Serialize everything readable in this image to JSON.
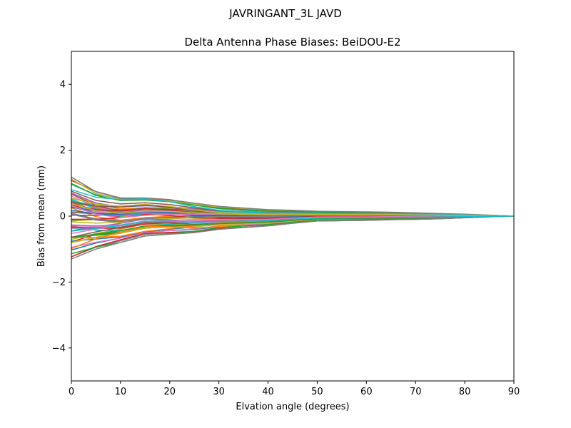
{
  "figure": {
    "suptitle": "JAVRINGANT_3L   JAVD"
  },
  "chart_data": {
    "type": "line",
    "title": "Delta Antenna Phase Biases: BeiDOU-E2",
    "xlabel": "Elvation angle (degrees)",
    "ylabel": "Bias from mean (mm)",
    "xlim": [
      0,
      90
    ],
    "ylim": [
      -5,
      5
    ],
    "xticks": [
      0,
      10,
      20,
      30,
      40,
      50,
      60,
      70,
      80,
      90
    ],
    "yticks": [
      -4,
      -2,
      0,
      2,
      4
    ],
    "xtick_labels": [
      "0",
      "10",
      "20",
      "30",
      "40",
      "50",
      "60",
      "70",
      "80",
      "90"
    ],
    "ytick_labels": [
      "−4",
      "−2",
      "0",
      "2",
      "4"
    ],
    "grid": false,
    "legend": "none",
    "series_count": 70,
    "x": [
      0,
      5,
      10,
      15,
      20,
      25,
      30,
      35,
      40,
      45,
      50,
      55,
      60,
      65,
      70,
      75,
      80,
      85,
      90
    ],
    "series_envelope": {
      "upper": [
        1.2,
        0.75,
        0.55,
        0.55,
        0.5,
        0.4,
        0.3,
        0.25,
        0.2,
        0.18,
        0.15,
        0.14,
        0.13,
        0.12,
        0.1,
        0.08,
        0.06,
        0.03,
        0.0
      ],
      "lower": [
        -1.3,
        -1.0,
        -0.8,
        -0.6,
        -0.55,
        -0.5,
        -0.4,
        -0.35,
        -0.3,
        -0.22,
        -0.15,
        -0.14,
        -0.13,
        -0.11,
        -0.1,
        -0.08,
        -0.05,
        -0.02,
        0.0
      ]
    },
    "palette": [
      "#1f77b4",
      "#ff7f0e",
      "#2ca02c",
      "#d62728",
      "#9467bd",
      "#8c564b",
      "#e377c2",
      "#7f7f7f",
      "#bcbd22",
      "#17becf"
    ]
  }
}
